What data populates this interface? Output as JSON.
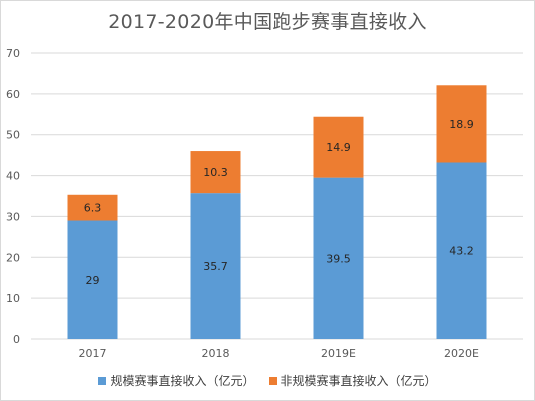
{
  "chart_data": {
    "type": "bar",
    "stacked": true,
    "title": "2017-2020年中国跑步赛事直接收入",
    "categories": [
      "2017",
      "2018",
      "2019E",
      "2020E"
    ],
    "series": [
      {
        "name": "规模赛事直接收入（亿元）",
        "values": [
          29,
          35.7,
          39.5,
          43.2
        ],
        "labels": [
          "29",
          "35.7",
          "39.5",
          "43.2"
        ],
        "color": "#5B9BD5"
      },
      {
        "name": "非规模赛事直接收入（亿元）",
        "values": [
          6.3,
          10.3,
          14.9,
          18.9
        ],
        "labels": [
          "6.3",
          "10.3",
          "14.9",
          "18.9"
        ],
        "color": "#ED7D31"
      }
    ],
    "yticks": [
      "0",
      "10",
      "20",
      "30",
      "40",
      "50",
      "60",
      "70"
    ],
    "ylim": [
      0,
      70
    ],
    "grid": true,
    "legend_position": "bottom"
  }
}
